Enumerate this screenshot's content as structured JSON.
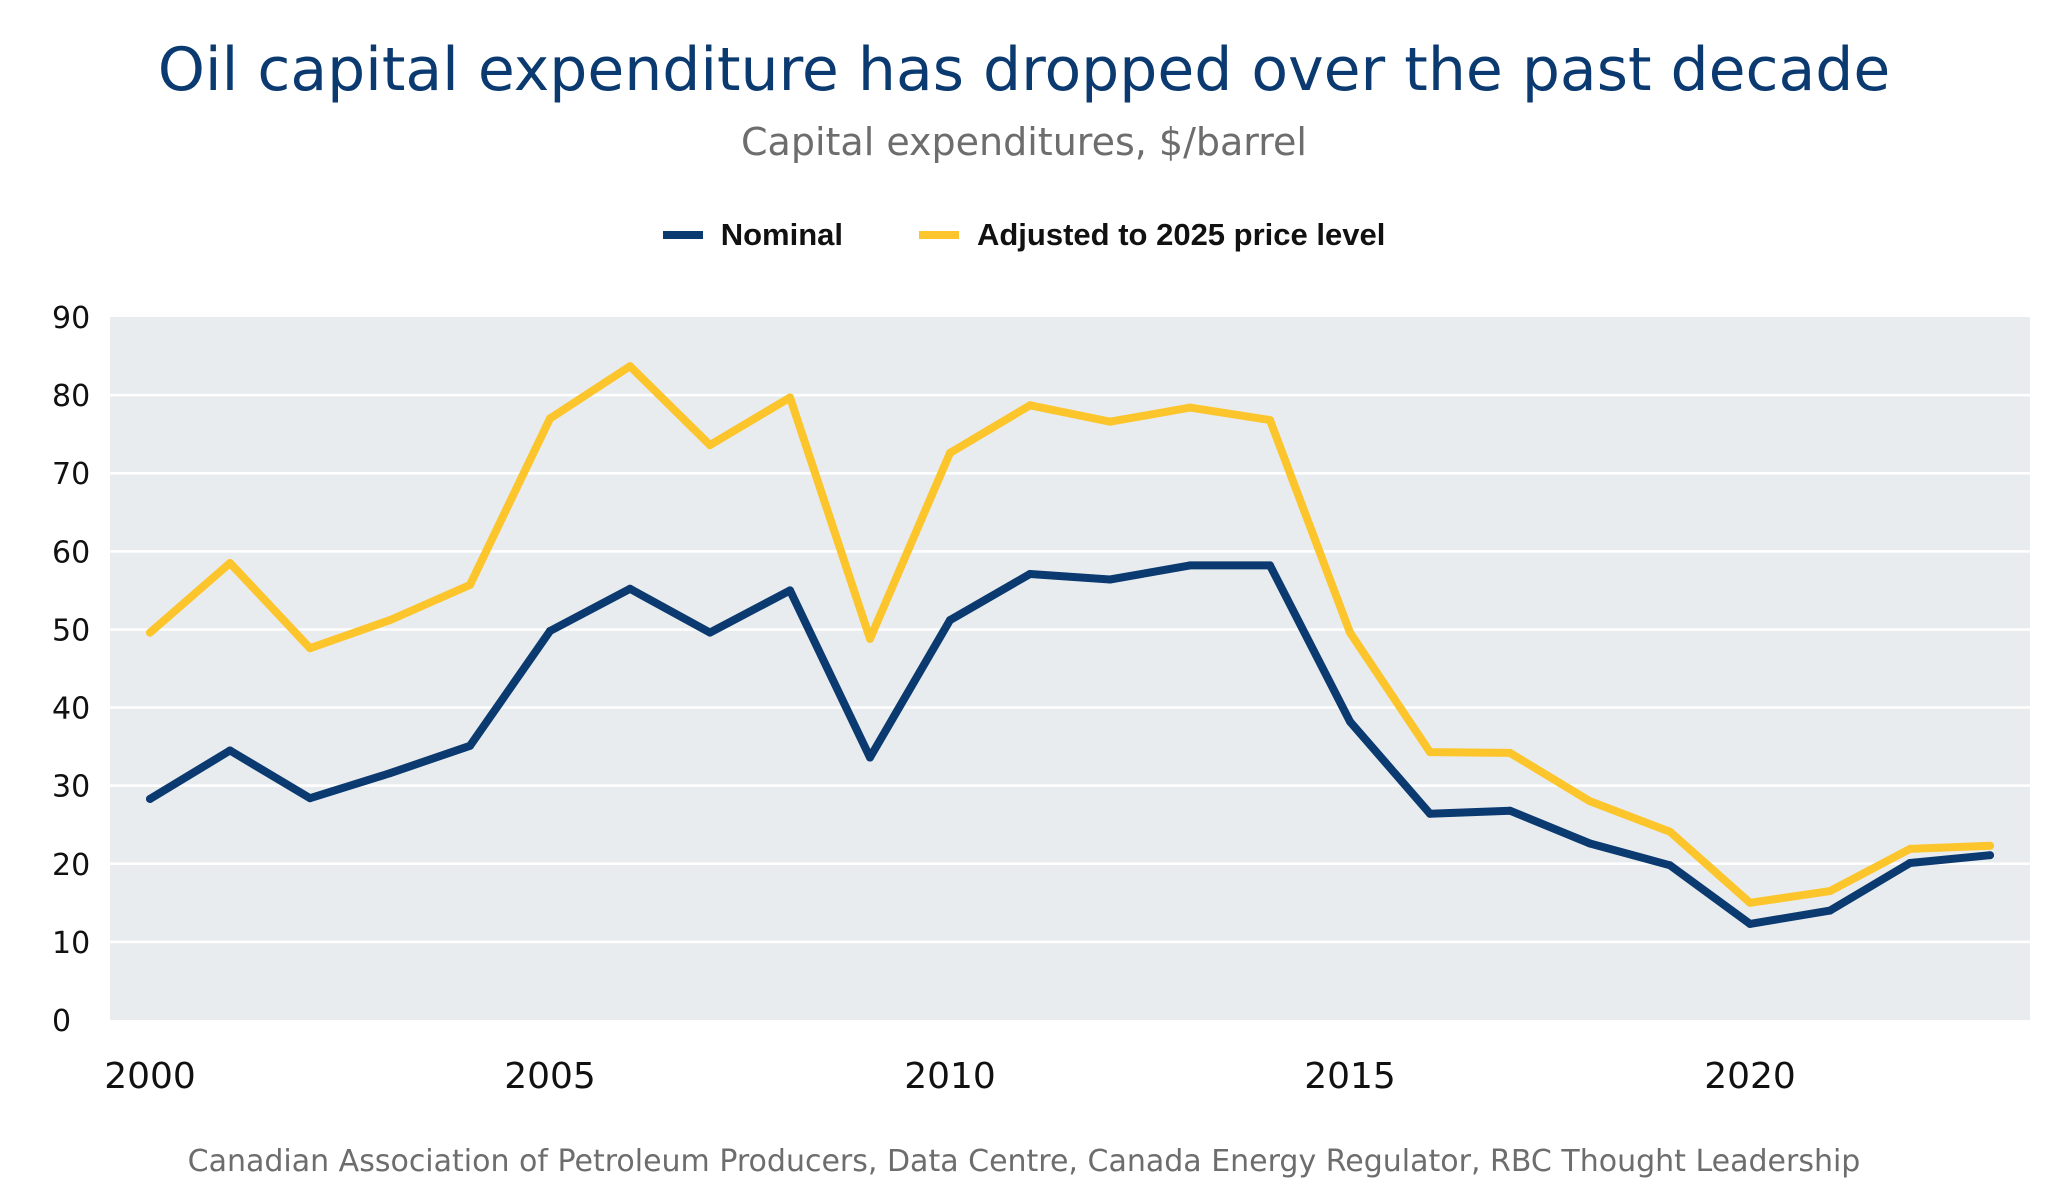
{
  "chart_data": {
    "type": "line",
    "title": "Oil capital expenditure has dropped over the past decade",
    "subtitle": "Capital expenditures, $/barrel",
    "source": "Canadian Association of Petroleum Producers, Data Centre, Canada Energy Regulator, RBC Thought Leadership",
    "x": [
      2000,
      2001,
      2002,
      2003,
      2004,
      2005,
      2006,
      2007,
      2008,
      2009,
      2010,
      2011,
      2012,
      2013,
      2014,
      2015,
      2016,
      2017,
      2018,
      2019,
      2020,
      2021,
      2022,
      2023
    ],
    "series": [
      {
        "name": "Nominal",
        "color": "#0b3a70",
        "values": [
          28.3,
          34.5,
          28.4,
          31.6,
          35.1,
          49.8,
          55.2,
          49.6,
          55.0,
          33.6,
          51.2,
          57.1,
          56.4,
          58.2,
          58.2,
          38.2,
          26.4,
          26.8,
          22.6,
          19.8,
          12.3,
          14.0,
          20.1,
          21.1
        ]
      },
      {
        "name": "Adjusted to 2025 price level",
        "color": "#fcc52c",
        "values": [
          49.6,
          58.5,
          47.6,
          51.2,
          55.7,
          77.0,
          83.7,
          73.6,
          79.7,
          48.8,
          72.6,
          78.7,
          76.6,
          78.4,
          76.8,
          49.6,
          34.3,
          34.2,
          28.0,
          24.1,
          15.0,
          16.5,
          21.9,
          22.3
        ]
      }
    ],
    "x_ticks": [
      2000,
      2005,
      2010,
      2015,
      2020
    ],
    "y_ticks": [
      0,
      10,
      20,
      30,
      40,
      50,
      60,
      70,
      80,
      90
    ],
    "ylim": [
      0,
      90
    ],
    "grid": true,
    "plot_background": "#e9ecef",
    "gridline_color": "#ffffff",
    "legend_position": "top-center"
  }
}
